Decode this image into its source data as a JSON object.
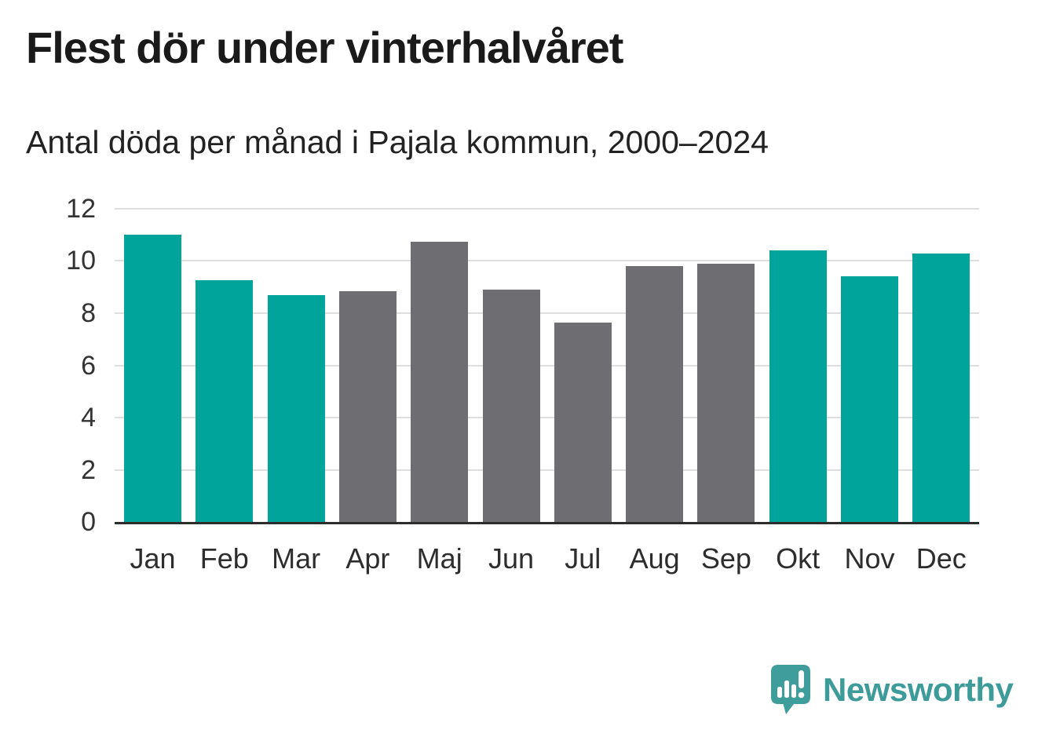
{
  "header": {
    "title": "Flest dör under vinterhalvåret",
    "subtitle": "Antal döda per månad i Pajala kommun, 2000–2024"
  },
  "chart_data": {
    "type": "bar",
    "title": "Flest dör under vinterhalvåret",
    "subtitle": "Antal döda per månad i Pajala kommun, 2000–2024",
    "categories": [
      "Jan",
      "Feb",
      "Mar",
      "Apr",
      "Maj",
      "Jun",
      "Jul",
      "Aug",
      "Sep",
      "Okt",
      "Nov",
      "Dec"
    ],
    "values": [
      11.0,
      9.25,
      8.7,
      8.85,
      10.75,
      8.9,
      7.65,
      9.8,
      9.9,
      10.4,
      9.4,
      10.3
    ],
    "highlighted_categories": [
      "Jan",
      "Feb",
      "Mar",
      "Okt",
      "Nov",
      "Dec"
    ],
    "highlight_color": "#00a49b",
    "base_color": "#6e6e72",
    "xlabel": "",
    "ylabel": "",
    "ylim": [
      0,
      12
    ],
    "yticks": [
      0,
      2,
      4,
      6,
      8,
      10,
      12
    ],
    "grid": "horizontal",
    "gridline_color": "#dedede",
    "axis_line_color": "#2d2d2d",
    "legend": "none"
  },
  "branding": {
    "logo_text": "Newsworthy",
    "logo_color": "#3d9b99",
    "logo_icon": "newsworthy-speech-bubble-bar-chart-icon",
    "logo_icon_color": "#3f9e9b"
  },
  "colors": {
    "background": "#ffffff",
    "title_text": "#1a1a1a",
    "subtitle_text": "#222222",
    "tick_label_text": "#333333",
    "month_label_text": "#2d2d2d"
  }
}
